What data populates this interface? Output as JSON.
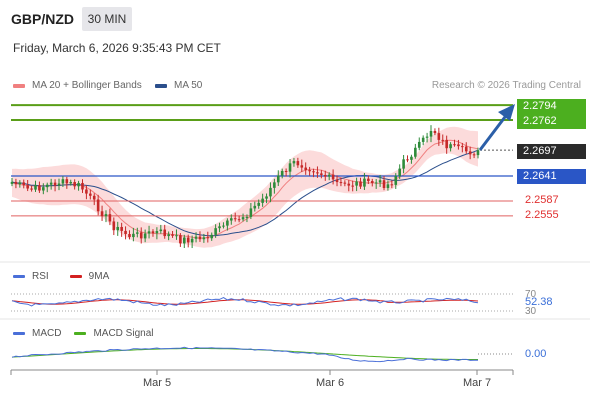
{
  "header": {
    "pair": "GBP/NZD",
    "timeframe": "30 MIN",
    "datetime": "Friday, March 6, 2026 9:35:43 PM CET"
  },
  "legend": {
    "items": [
      {
        "label": "MA 20 + Bollinger Bands",
        "color": "#f08080"
      },
      {
        "label": "MA 50",
        "color": "#2b4f8c"
      }
    ],
    "credit": "Research © 2026 Trading Central"
  },
  "colors": {
    "bull": "#2e8b3a",
    "bear": "#c62828",
    "band_fill": "#fbd5d5",
    "resistance": "#5a9e18",
    "support": "#e06060",
    "pivot": "#2a56c6",
    "current": "#222222",
    "arrow": "#2b5fa8"
  },
  "chart_data": [
    {
      "type": "candlestick",
      "title": "GBP/NZD",
      "x_ticks": [
        "Mar 5",
        "Mar 6",
        "Mar 7"
      ],
      "y_range": [
        2.253,
        2.281
      ],
      "candles_count": 120,
      "levels": {
        "resistance": [
          2.2794,
          2.2762
        ],
        "pivot": 2.2641,
        "current": 2.2697,
        "support": [
          2.2587,
          2.2555
        ]
      },
      "indicators": [
        "MA 20 + Bollinger Bands",
        "MA 50"
      ]
    },
    {
      "type": "line",
      "title": "RSI",
      "series": [
        {
          "name": "RSI",
          "color": "#4a6fd8"
        },
        {
          "name": "9MA",
          "color": "#d32020"
        }
      ],
      "levels": [
        70,
        30
      ],
      "value_label": "52.38"
    },
    {
      "type": "line",
      "title": "MACD",
      "series": [
        {
          "name": "MACD",
          "color": "#4a6fd8"
        },
        {
          "name": "MACD Signal",
          "color": "#4caf1f"
        }
      ],
      "zero_label": "0.00"
    }
  ],
  "labels": {
    "r1": "2.2794",
    "r2": "2.2762",
    "cur": "2.2697",
    "pivot": "2.2641",
    "s1": "2.2587",
    "s2": "2.2555",
    "rsi_title": "RSI",
    "rsi_ma": "9MA",
    "rsi70": "70",
    "rsi30": "30",
    "rsi_val": "52.38",
    "macd_title": "MACD",
    "macd_signal": "MACD Signal",
    "macd_zero": "0.00",
    "x1": "Mar 5",
    "x2": "Mar 6",
    "x3": "Mar 7"
  }
}
